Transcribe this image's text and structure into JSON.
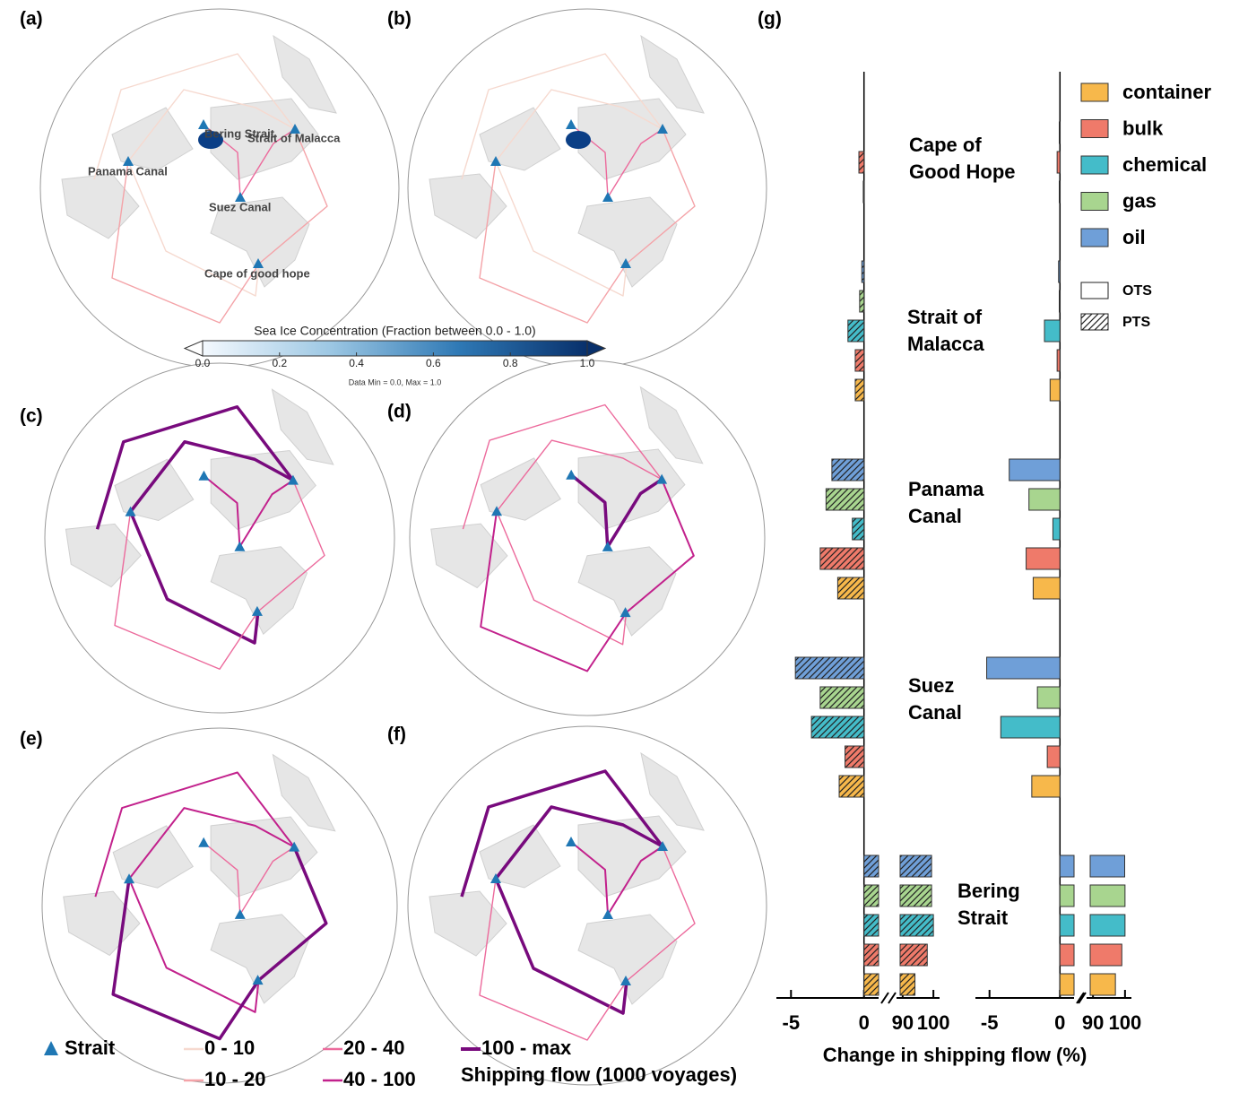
{
  "panel_labels": [
    "(a)",
    "(b)",
    "(c)",
    "(d)",
    "(e)",
    "(f)",
    "(g)"
  ],
  "map_a_labels": [
    "Bering Strait",
    "Strait of Malacca",
    "Panama Canal",
    "Suez Canal",
    "Cape of good hope"
  ],
  "colorbar": {
    "title": "Sea Ice Concentration (Fraction between 0.0 - 1.0)",
    "lim": [
      0,
      1
    ],
    "ticks": [
      {
        "value": 0,
        "label": "0.0"
      },
      {
        "value": 0.2,
        "label": "0.2"
      },
      {
        "value": 0.4,
        "label": "0.4"
      },
      {
        "value": 0.6,
        "label": "0.6"
      },
      {
        "value": 0.8,
        "label": "0.8"
      },
      {
        "value": 1,
        "label": "1.0"
      }
    ],
    "note": "Data Min = 0.0, Max = 1.0",
    "colors": [
      "#f4f9fe",
      "#9cc7e3",
      "#2f79b5",
      "#08306b"
    ]
  },
  "map_legend": {
    "strait": "Strait",
    "strait_color": "#1f77b4",
    "classes": [
      "0 - 10",
      "10 - 20",
      "20 - 40",
      "40 - 100",
      "100 - max"
    ],
    "class_colors": [
      "#f6d9cf",
      "#f4a3a8",
      "#ec6a9c",
      "#c2218c",
      "#780a7d"
    ],
    "title": "Shipping flow (1000 voyages)"
  },
  "chart_data": {
    "type": "bar",
    "orientation": "horizontal",
    "xlabel": "Change in shipping flow (%)",
    "xlim": [
      [
        -6,
        1
      ],
      [
        88,
        102
      ]
    ],
    "xticks": [
      [
        -5,
        0
      ],
      [
        90,
        100
      ]
    ],
    "groups": [
      [
        "Cape of",
        "Good Hope"
      ],
      [
        "Strait of",
        "Malacca"
      ],
      [
        "Panama",
        "Canal"
      ],
      [
        "Suez",
        "Canal"
      ],
      [
        "Bering",
        "Strait"
      ]
    ],
    "categories": [
      "oil",
      "gas",
      "chemical",
      "bulk",
      "container"
    ],
    "category_colors": [
      "#6f9fd8",
      "#a8d58f",
      "#44bcc9",
      "#ef7a6a",
      "#f7b84b"
    ],
    "series": [
      {
        "name": "PTS",
        "hatch": true,
        "values": [
          [
            0,
            0,
            0,
            -0.35,
            -0.05
          ],
          [
            -0.15,
            -0.3,
            -1.1,
            -0.6,
            -0.6
          ],
          [
            -2.2,
            -2.6,
            -0.8,
            -3.0,
            -1.8
          ],
          [
            -4.7,
            -3.0,
            -3.6,
            -1.3,
            -1.7
          ],
          [
            99.4,
            99.4,
            100,
            98,
            94
          ]
        ]
      },
      {
        "name": "OTS",
        "hatch": false,
        "values": [
          [
            0,
            0,
            -0.05,
            -0.2,
            -0.05
          ],
          [
            -0.1,
            -0.05,
            -1.1,
            -0.2,
            -0.7
          ],
          [
            -3.6,
            -2.2,
            -0.5,
            -2.4,
            -1.9
          ],
          [
            -5.2,
            -1.6,
            -4.2,
            -0.9,
            -2.0
          ],
          [
            99.9,
            100,
            100,
            99,
            97
          ]
        ]
      }
    ]
  }
}
